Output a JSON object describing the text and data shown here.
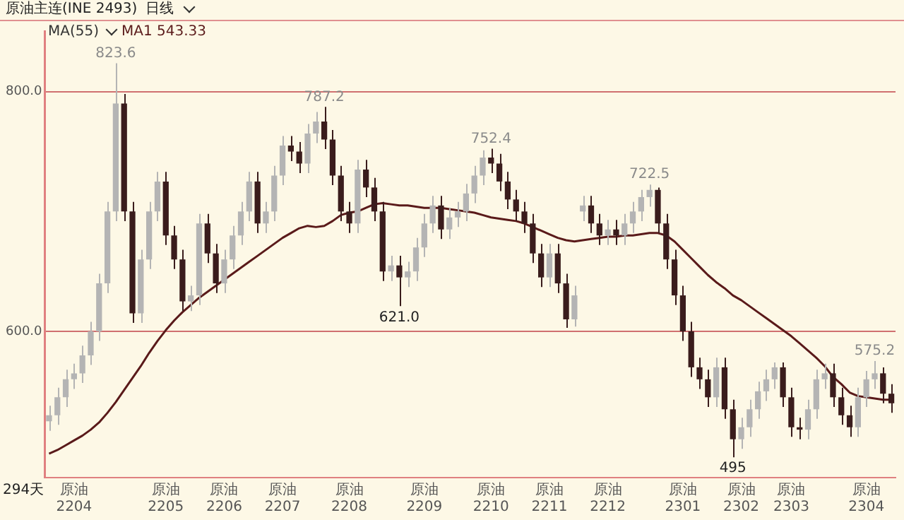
{
  "chart_data": {
    "type": "candlestick",
    "title": "原油主连(INE 2493)",
    "subtitle": "日线",
    "legend_title": "MA(55)",
    "legend": "top left",
    "grid": "y",
    "ylim": [
      478,
      850
    ],
    "yticks": [
      {
        "value": 600,
        "label": "600.0"
      },
      {
        "value": 800,
        "label": "800.0"
      }
    ],
    "categories": [
      null,
      null,
      null,
      "原油2204",
      null,
      null,
      null,
      null,
      null,
      null,
      null,
      null,
      null,
      null,
      "原油2205",
      null,
      null,
      null,
      null,
      null,
      null,
      "原油2206",
      null,
      null,
      null,
      null,
      null,
      null,
      "原油2207",
      null,
      null,
      null,
      null,
      null,
      null,
      null,
      "原油2208",
      null,
      null,
      null,
      null,
      null,
      null,
      null,
      null,
      "原油2209",
      null,
      null,
      null,
      null,
      null,
      null,
      null,
      "原油2210",
      null,
      null,
      null,
      null,
      null,
      null,
      "原油2211",
      null,
      null,
      null,
      null,
      null,
      null,
      "原油2212",
      null,
      null,
      null,
      null,
      null,
      null,
      null,
      null,
      "原油2301",
      null,
      null,
      null,
      null,
      null,
      null,
      "原油2302",
      null,
      null,
      null,
      null,
      null,
      "原油2303",
      null,
      null,
      null,
      null,
      null,
      null,
      null,
      null,
      "原油2304",
      null,
      null,
      null
    ],
    "ohlc": [
      [
        525,
        538,
        517,
        530
      ],
      [
        530,
        553,
        522,
        545
      ],
      [
        545,
        568,
        537,
        560
      ],
      [
        560,
        573,
        552,
        565
      ],
      [
        565,
        588,
        557,
        580
      ],
      [
        580,
        608,
        572,
        600
      ],
      [
        600,
        648,
        592,
        640
      ],
      [
        640,
        708,
        632,
        700
      ],
      [
        700,
        823.6,
        692,
        790
      ],
      [
        790,
        798,
        692,
        700
      ],
      [
        700,
        708,
        607,
        615
      ],
      [
        615,
        668,
        607,
        660
      ],
      [
        660,
        708,
        652,
        700
      ],
      [
        700,
        733,
        692,
        725
      ],
      [
        725,
        733,
        672,
        680
      ],
      [
        680,
        688,
        652,
        660
      ],
      [
        660,
        668,
        617,
        625
      ],
      [
        625,
        638,
        617,
        630
      ],
      [
        630,
        698,
        622,
        690
      ],
      [
        690,
        698,
        657,
        665
      ],
      [
        665,
        673,
        632,
        640
      ],
      [
        640,
        668,
        632,
        660
      ],
      [
        660,
        688,
        652,
        680
      ],
      [
        680,
        708,
        672,
        700
      ],
      [
        700,
        733,
        692,
        725
      ],
      [
        725,
        733,
        682,
        690
      ],
      [
        690,
        708,
        682,
        700
      ],
      [
        700,
        738,
        692,
        730
      ],
      [
        730,
        763,
        722,
        755
      ],
      [
        755,
        763,
        742,
        750
      ],
      [
        750,
        758,
        732,
        740
      ],
      [
        740,
        773,
        732,
        765
      ],
      [
        765,
        783,
        757,
        775
      ],
      [
        775,
        787.2,
        752,
        760
      ],
      [
        760,
        768,
        722,
        730
      ],
      [
        730,
        738,
        692,
        700
      ],
      [
        700,
        708,
        682,
        690
      ],
      [
        690,
        743,
        682,
        735
      ],
      [
        735,
        743,
        712,
        720
      ],
      [
        720,
        728,
        692,
        700
      ],
      [
        700,
        708,
        642,
        650
      ],
      [
        650,
        663,
        642,
        655
      ],
      [
        655,
        663,
        621,
        645
      ],
      [
        645,
        658,
        637,
        650
      ],
      [
        650,
        678,
        642,
        670
      ],
      [
        670,
        698,
        662,
        690
      ],
      [
        690,
        713,
        682,
        705
      ],
      [
        705,
        713,
        677,
        685
      ],
      [
        685,
        703,
        677,
        695
      ],
      [
        695,
        708,
        687,
        700
      ],
      [
        700,
        723,
        692,
        715
      ],
      [
        715,
        738,
        707,
        730
      ],
      [
        730,
        751,
        722,
        745
      ],
      [
        745,
        752.4,
        732,
        740
      ],
      [
        740,
        748,
        717,
        725
      ],
      [
        725,
        733,
        702,
        710
      ],
      [
        710,
        718,
        692,
        700
      ],
      [
        700,
        708,
        682,
        690
      ],
      [
        690,
        698,
        657,
        665
      ],
      [
        665,
        673,
        637,
        645
      ],
      [
        645,
        673,
        637,
        665
      ],
      [
        665,
        673,
        632,
        640
      ],
      [
        640,
        648,
        603,
        610
      ],
      [
        610,
        638,
        604,
        630
      ],
      [
        700,
        713,
        692,
        705
      ],
      [
        705,
        713,
        682,
        690
      ],
      [
        690,
        698,
        672,
        680
      ],
      [
        680,
        693,
        672,
        685
      ],
      [
        685,
        693,
        672,
        680
      ],
      [
        680,
        698,
        672,
        690
      ],
      [
        690,
        708,
        682,
        700
      ],
      [
        700,
        718,
        692,
        712
      ],
      [
        712,
        722.5,
        704,
        718
      ],
      [
        718,
        720,
        682,
        690
      ],
      [
        690,
        698,
        652,
        660
      ],
      [
        660,
        668,
        622,
        630
      ],
      [
        630,
        638,
        592,
        600
      ],
      [
        600,
        608,
        562,
        570
      ],
      [
        570,
        578,
        552,
        560
      ],
      [
        560,
        568,
        537,
        545
      ],
      [
        545,
        578,
        537,
        570
      ],
      [
        570,
        578,
        527,
        535
      ],
      [
        535,
        543,
        495,
        510
      ],
      [
        510,
        528,
        502,
        520
      ],
      [
        520,
        543,
        512,
        535
      ],
      [
        535,
        558,
        527,
        550
      ],
      [
        550,
        568,
        542,
        560
      ],
      [
        560,
        574,
        552,
        570
      ],
      [
        570,
        574,
        537,
        545
      ],
      [
        545,
        553,
        512,
        520
      ],
      [
        520,
        528,
        510,
        518
      ],
      [
        518,
        543,
        510,
        535
      ],
      [
        535,
        568,
        527,
        560
      ],
      [
        560,
        573,
        552,
        565
      ],
      [
        565,
        573,
        537,
        545
      ],
      [
        545,
        553,
        522,
        530
      ],
      [
        530,
        538,
        512,
        520
      ],
      [
        520,
        553,
        512,
        545
      ],
      [
        545,
        567,
        537,
        560
      ],
      [
        560,
        575.2,
        552,
        565
      ],
      [
        565,
        570,
        540,
        548
      ],
      [
        548,
        556,
        532,
        540
      ]
    ],
    "colors": [
      "#b4b4b4",
      "#b4b4b4",
      "#b4b4b4",
      "#b4b4b4",
      "#b4b4b4",
      "#b4b4b4",
      "#b4b4b4",
      "#b4b4b4",
      "#b4b4b4",
      "#3a1c1c",
      "#3a1c1c",
      "#b4b4b4",
      "#b4b4b4",
      "#b4b4b4",
      "#3a1c1c",
      "#3a1c1c",
      "#3a1c1c",
      "#b4b4b4",
      "#b4b4b4",
      "#3a1c1c",
      "#3a1c1c",
      "#b4b4b4",
      "#b4b4b4",
      "#b4b4b4",
      "#b4b4b4",
      "#3a1c1c",
      "#b4b4b4",
      "#b4b4b4",
      "#b4b4b4",
      "#3a1c1c",
      "#3a1c1c",
      "#b4b4b4",
      "#b4b4b4",
      "#3a1c1c",
      "#3a1c1c",
      "#3a1c1c",
      "#3a1c1c",
      "#b4b4b4",
      "#3a1c1c",
      "#3a1c1c",
      "#3a1c1c",
      "#b4b4b4",
      "#3a1c1c",
      "#b4b4b4",
      "#b4b4b4",
      "#b4b4b4",
      "#b4b4b4",
      "#3a1c1c",
      "#b4b4b4",
      "#b4b4b4",
      "#b4b4b4",
      "#b4b4b4",
      "#b4b4b4",
      "#3a1c1c",
      "#3a1c1c",
      "#3a1c1c",
      "#3a1c1c",
      "#3a1c1c",
      "#3a1c1c",
      "#3a1c1c",
      "#b4b4b4",
      "#3a1c1c",
      "#3a1c1c",
      "#b4b4b4",
      "#b4b4b4",
      "#3a1c1c",
      "#3a1c1c",
      "#b4b4b4",
      "#3a1c1c",
      "#b4b4b4",
      "#b4b4b4",
      "#b4b4b4",
      "#b4b4b4",
      "#3a1c1c",
      "#3a1c1c",
      "#3a1c1c",
      "#3a1c1c",
      "#3a1c1c",
      "#3a1c1c",
      "#3a1c1c",
      "#b4b4b4",
      "#3a1c1c",
      "#3a1c1c",
      "#b4b4b4",
      "#b4b4b4",
      "#b4b4b4",
      "#b4b4b4",
      "#b4b4b4",
      "#3a1c1c",
      "#3a1c1c",
      "#3a1c1c",
      "#b4b4b4",
      "#b4b4b4",
      "#b4b4b4",
      "#3a1c1c",
      "#3a1c1c",
      "#3a1c1c",
      "#b4b4b4",
      "#b4b4b4",
      "#b4b4b4",
      "#3a1c1c",
      "#3a1c1c"
    ],
    "series": [
      {
        "type": "line",
        "name": "MA1 543.33",
        "color": "#5a1a1a",
        "values": [
          498,
          501,
          505,
          509,
          513,
          518,
          524,
          532,
          541,
          551,
          561,
          571,
          582,
          592,
          601,
          609,
          616,
          622,
          628,
          633,
          638,
          643,
          648,
          653,
          658,
          663,
          668,
          673,
          678,
          682,
          686,
          688,
          687,
          688,
          692,
          697,
          699,
          700,
          703,
          706,
          707,
          706,
          705,
          705,
          704,
          703,
          703,
          703,
          702,
          701,
          700,
          699,
          697,
          695,
          694,
          693,
          692,
          690,
          687,
          684,
          681,
          678,
          676,
          675,
          676,
          677,
          678,
          679,
          679,
          680,
          680,
          681,
          682,
          682,
          680,
          675,
          668,
          661,
          654,
          647,
          641,
          636,
          630,
          626,
          621,
          616,
          611,
          606,
          601,
          596,
          590,
          584,
          578,
          571,
          562,
          556,
          549,
          546,
          545,
          544,
          543,
          543
        ]
      }
    ],
    "annotations": [
      {
        "text": "823.6",
        "y": 823.6
      },
      {
        "text": "787.2",
        "y": 787.2
      },
      {
        "text": "752.4",
        "y": 752.4
      },
      {
        "text": "722.5",
        "y": 722.5
      },
      {
        "text": "575.2",
        "y": 575.2
      },
      {
        "text": "621.0",
        "y": 621
      },
      {
        "text": "495",
        "y": 495
      },
      "294天"
    ]
  }
}
